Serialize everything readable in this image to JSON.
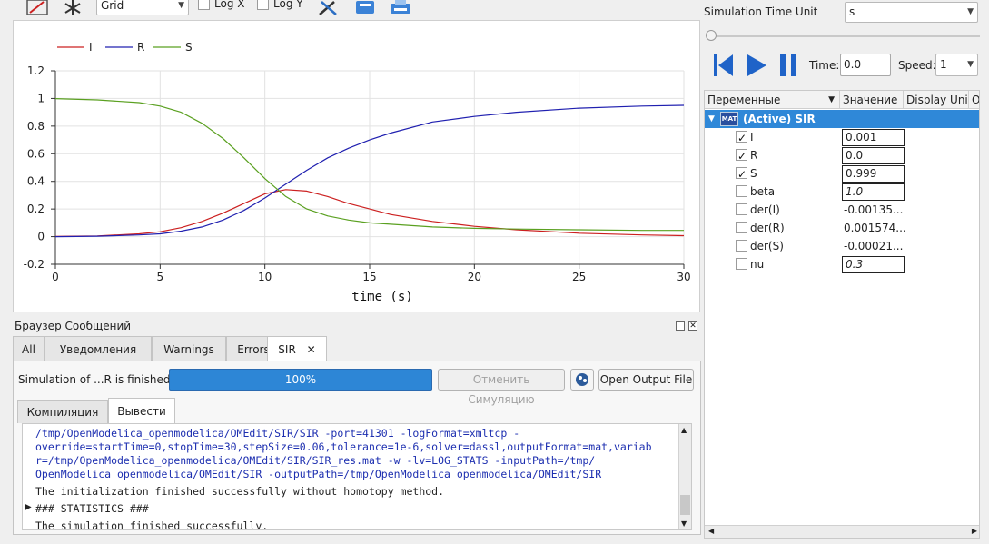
{
  "toolbar": {
    "grid_combo": "Grid",
    "logx_label": "Log X",
    "logy_label": "Log Y"
  },
  "plot": {
    "legend": [
      "I",
      "R",
      "S"
    ],
    "xlabel": "time (s)"
  },
  "chart_data": {
    "type": "line",
    "xlabel": "time (s)",
    "ylabel": "",
    "xlim": [
      0,
      30
    ],
    "ylim": [
      -0.2,
      1.2
    ],
    "xticks": [
      0,
      5,
      10,
      15,
      20,
      25,
      30
    ],
    "yticks": [
      -0.2,
      0,
      0.2,
      0.4,
      0.6,
      0.8,
      1,
      1.2
    ],
    "grid": true,
    "legend_position": "top-left",
    "x": [
      0,
      2,
      4,
      5,
      6,
      7,
      8,
      9,
      10,
      11,
      12,
      13,
      14,
      15,
      16,
      18,
      20,
      22,
      25,
      28,
      30
    ],
    "series": [
      {
        "name": "I",
        "color": "#cc2020",
        "values": [
          0.001,
          0.005,
          0.02,
          0.035,
          0.065,
          0.11,
          0.17,
          0.24,
          0.31,
          0.34,
          0.33,
          0.29,
          0.24,
          0.2,
          0.16,
          0.11,
          0.075,
          0.05,
          0.025,
          0.012,
          0.007
        ]
      },
      {
        "name": "R",
        "color": "#2020b0",
        "values": [
          0.0,
          0.003,
          0.012,
          0.02,
          0.04,
          0.07,
          0.12,
          0.19,
          0.28,
          0.38,
          0.48,
          0.57,
          0.64,
          0.7,
          0.75,
          0.83,
          0.87,
          0.9,
          0.93,
          0.945,
          0.95
        ]
      },
      {
        "name": "S",
        "color": "#5aa020",
        "values": [
          0.999,
          0.99,
          0.97,
          0.945,
          0.9,
          0.82,
          0.71,
          0.57,
          0.42,
          0.29,
          0.2,
          0.15,
          0.12,
          0.1,
          0.09,
          0.07,
          0.06,
          0.055,
          0.05,
          0.045,
          0.045
        ]
      }
    ]
  },
  "messages": {
    "title": "Браузер Сообщений",
    "tabs": [
      {
        "label": "All"
      },
      {
        "label": "Уведомления"
      },
      {
        "label": "Warnings"
      },
      {
        "label": "Errors"
      },
      {
        "label": "SIR"
      }
    ],
    "status_text": "Simulation of ...R is finished.",
    "progress_text": "100%",
    "progress_value": 100,
    "cancel_button": "Отменить Симуляцию",
    "open_output_button": "Open Output File",
    "subtabs": [
      "Компиляция",
      "Вывести"
    ],
    "output_lines": [
      "/tmp/OpenModelica_openmodelica/OMEdit/SIR/SIR -port=41301 -logFormat=xmltcp -",
      "override=startTime=0,stopTime=30,stepSize=0.06,tolerance=1e-6,solver=dassl,outputFormat=mat,variab",
      "r=/tmp/OpenModelica_openmodelica/OMEdit/SIR/SIR_res.mat -w -lv=LOG_STATS -inputPath=/tmp/",
      "OpenModelica_openmodelica/OMEdit/SIR -outputPath=/tmp/OpenModelica_openmodelica/OMEdit/SIR",
      "The initialization finished successfully without homotopy method.",
      "### STATISTICS ###",
      "The simulation finished successfully."
    ]
  },
  "simulation": {
    "time_unit_label": "Simulation Time Unit",
    "time_unit_value": "s",
    "time_label": "Time:",
    "time_value": "0.0",
    "speed_label": "Speed:",
    "speed_value": "1",
    "slider_fraction": 0
  },
  "variables": {
    "columns": [
      "Переменные",
      "Значение",
      "Display Unit",
      "Or"
    ],
    "root_icon_text": "MAT",
    "root_label": "(Active) SIR",
    "rows": [
      {
        "name": "I",
        "checked": true,
        "value": "0.001",
        "editable": true
      },
      {
        "name": "R",
        "checked": true,
        "value": "0.0",
        "editable": true
      },
      {
        "name": "S",
        "checked": true,
        "value": "0.999",
        "editable": true
      },
      {
        "name": "beta",
        "checked": false,
        "value": "1.0",
        "editable": true
      },
      {
        "name": "der(I)",
        "checked": false,
        "value": "-0.00135...",
        "editable": false
      },
      {
        "name": "der(R)",
        "checked": false,
        "value": "0.001574...",
        "editable": false
      },
      {
        "name": "der(S)",
        "checked": false,
        "value": "-0.00021...",
        "editable": false
      },
      {
        "name": "nu",
        "checked": false,
        "value": "0.3",
        "editable": true
      }
    ]
  }
}
